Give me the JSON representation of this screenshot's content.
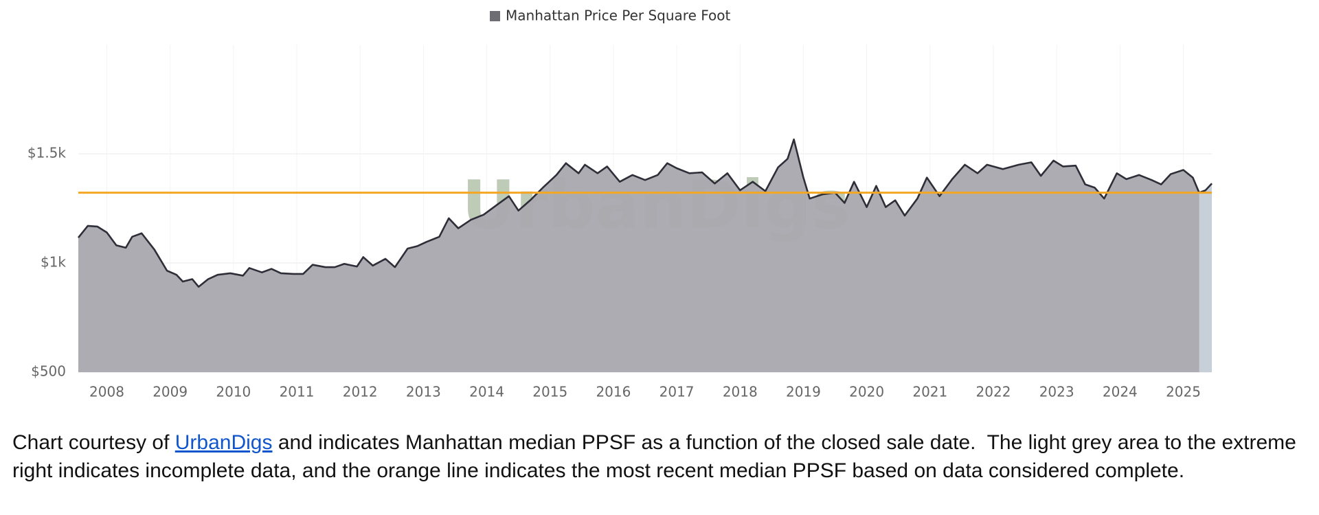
{
  "chart_data": {
    "type": "area",
    "legend": "Manhattan Price Per Square Foot",
    "watermark": "UrbanDigs",
    "x": [
      2007.55,
      2007.7,
      2007.85,
      2008.0,
      2008.15,
      2008.3,
      2008.4,
      2008.55,
      2008.75,
      2008.95,
      2009.1,
      2009.2,
      2009.35,
      2009.45,
      2009.6,
      2009.75,
      2009.95,
      2010.15,
      2010.25,
      2010.45,
      2010.6,
      2010.75,
      2010.95,
      2011.1,
      2011.25,
      2011.45,
      2011.6,
      2011.75,
      2011.95,
      2012.05,
      2012.2,
      2012.4,
      2012.55,
      2012.75,
      2012.9,
      2013.05,
      2013.25,
      2013.4,
      2013.55,
      2013.75,
      2013.95,
      2014.15,
      2014.35,
      2014.5,
      2014.7,
      2014.9,
      2015.1,
      2015.25,
      2015.45,
      2015.55,
      2015.75,
      2015.9,
      2016.1,
      2016.3,
      2016.5,
      2016.7,
      2016.85,
      2017.0,
      2017.2,
      2017.4,
      2017.6,
      2017.8,
      2018.0,
      2018.2,
      2018.4,
      2018.6,
      2018.75,
      2018.85,
      2019.0,
      2019.1,
      2019.3,
      2019.5,
      2019.65,
      2019.8,
      2020.0,
      2020.15,
      2020.3,
      2020.45,
      2020.6,
      2020.8,
      2020.95,
      2021.15,
      2021.35,
      2021.55,
      2021.75,
      2021.9,
      2022.15,
      2022.4,
      2022.6,
      2022.75,
      2022.95,
      2023.1,
      2023.3,
      2023.45,
      2023.6,
      2023.75,
      2023.95,
      2024.1,
      2024.3,
      2024.5,
      2024.65,
      2024.8,
      2025.0,
      2025.15,
      2025.25,
      2025.35,
      2025.45
    ],
    "series": [
      {
        "name": "Manhattan Price Per Square Foot",
        "color": "#a9a8ae",
        "line_color": "#2e2e38",
        "values": [
          1116,
          1170,
          1167,
          1140,
          1081,
          1070,
          1120,
          1136,
          1062,
          965,
          946,
          915,
          926,
          891,
          926,
          946,
          953,
          942,
          977,
          957,
          973,
          953,
          950,
          950,
          992,
          981,
          981,
          996,
          984,
          1027,
          988,
          1019,
          981,
          1066,
          1077,
          1097,
          1120,
          1205,
          1159,
          1198,
          1221,
          1264,
          1306,
          1240,
          1291,
          1349,
          1403,
          1457,
          1411,
          1450,
          1411,
          1442,
          1372,
          1403,
          1380,
          1403,
          1457,
          1434,
          1411,
          1415,
          1364,
          1411,
          1333,
          1372,
          1329,
          1438,
          1477,
          1566,
          1391,
          1295,
          1314,
          1322,
          1275,
          1372,
          1256,
          1353,
          1256,
          1287,
          1217,
          1295,
          1391,
          1306,
          1384,
          1450,
          1411,
          1450,
          1430,
          1450,
          1461,
          1399,
          1469,
          1442,
          1446,
          1360,
          1345,
          1295,
          1411,
          1384,
          1403,
          1380,
          1360,
          1407,
          1426,
          1391,
          1322,
          1333,
          1364
        ]
      }
    ],
    "reference_line": {
      "value": 1322,
      "color": "#f5a623"
    },
    "incomplete_region": {
      "from": 2025.25,
      "to": 2025.45,
      "color": "#c7d0d8"
    },
    "xlim": [
      2007.55,
      2025.45
    ],
    "xticks": [
      2008,
      2009,
      2010,
      2011,
      2012,
      2013,
      2014,
      2015,
      2016,
      2017,
      2018,
      2019,
      2020,
      2021,
      2022,
      2023,
      2024,
      2025
    ],
    "ylim": [
      500,
      2000
    ],
    "yticks": [
      {
        "value": 500,
        "label": "$500"
      },
      {
        "value": 1000,
        "label": "$1k"
      },
      {
        "value": 1500,
        "label": "$1.5k"
      }
    ],
    "grid": true
  },
  "caption": {
    "before": "Chart courtesy of ",
    "link": "UrbanDigs",
    "after": " and indicates Manhattan median PPSF as a function of the closed sale date.  The light grey area to the extreme right indicates incomplete data, and the orange line indicates the most recent median PPSF based on data considered complete."
  }
}
